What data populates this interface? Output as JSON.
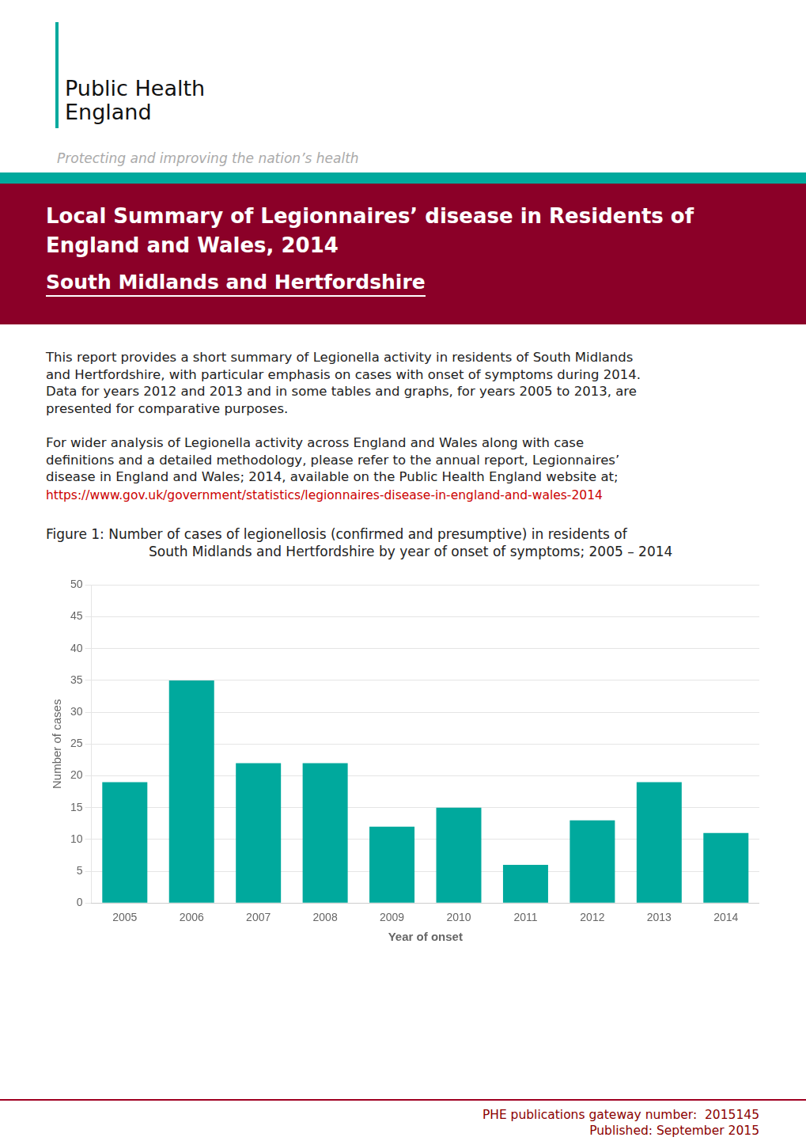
{
  "chart_data": {
    "type": "bar",
    "title": [
      "Figure 1: Number of cases of legionellosis (confirmed and presumptive) in residents of",
      "South Midlands and Hertfordshire by year of onset of symptoms; 2005 – 2014"
    ],
    "annotations": [
      "Public Health",
      "England",
      "Protecting and improving the nation’s health",
      "Local Summary of Legionnaires’ disease in Residents of",
      "England and Wales, 2014",
      "South Midlands and Hertfordshire",
      "This report provides a short summary of Legionella activity in residents of South Midlands",
      "and Hertfordshire, with particular emphasis on cases with onset of symptoms during 2014.",
      "Data for years 2012 and 2013 and in some tables and graphs, for years 2005 to 2013, are",
      "presented for comparative purposes.",
      "For wider analysis of Legionella activity across England and Wales along with case",
      "definitions and a detailed methodology, please refer to the annual report, Legionnaires’",
      "disease in England and Wales; 2014, available on the Public Health England website at;",
      "https://www.gov.uk/government/statistics/legionnaires-disease-in-england-and-wales-2014",
      "PHE publications gateway number:  2015145",
      "Published: September 2015"
    ],
    "categories": [
      "2005",
      "2006",
      "2007",
      "2008",
      "2009",
      "2010",
      "2011",
      "2012",
      "2013",
      "2014"
    ],
    "values": [
      19,
      35,
      22,
      22,
      12,
      15,
      6,
      13,
      19,
      11
    ],
    "color": "#00A99D",
    "xlabel": "Year of onset",
    "ylabel": "Number of cases",
    "ylim": [
      0,
      50
    ],
    "yticks": [
      0,
      5,
      10,
      15,
      20,
      25,
      30,
      35,
      40,
      45,
      50
    ],
    "grid": true
  }
}
